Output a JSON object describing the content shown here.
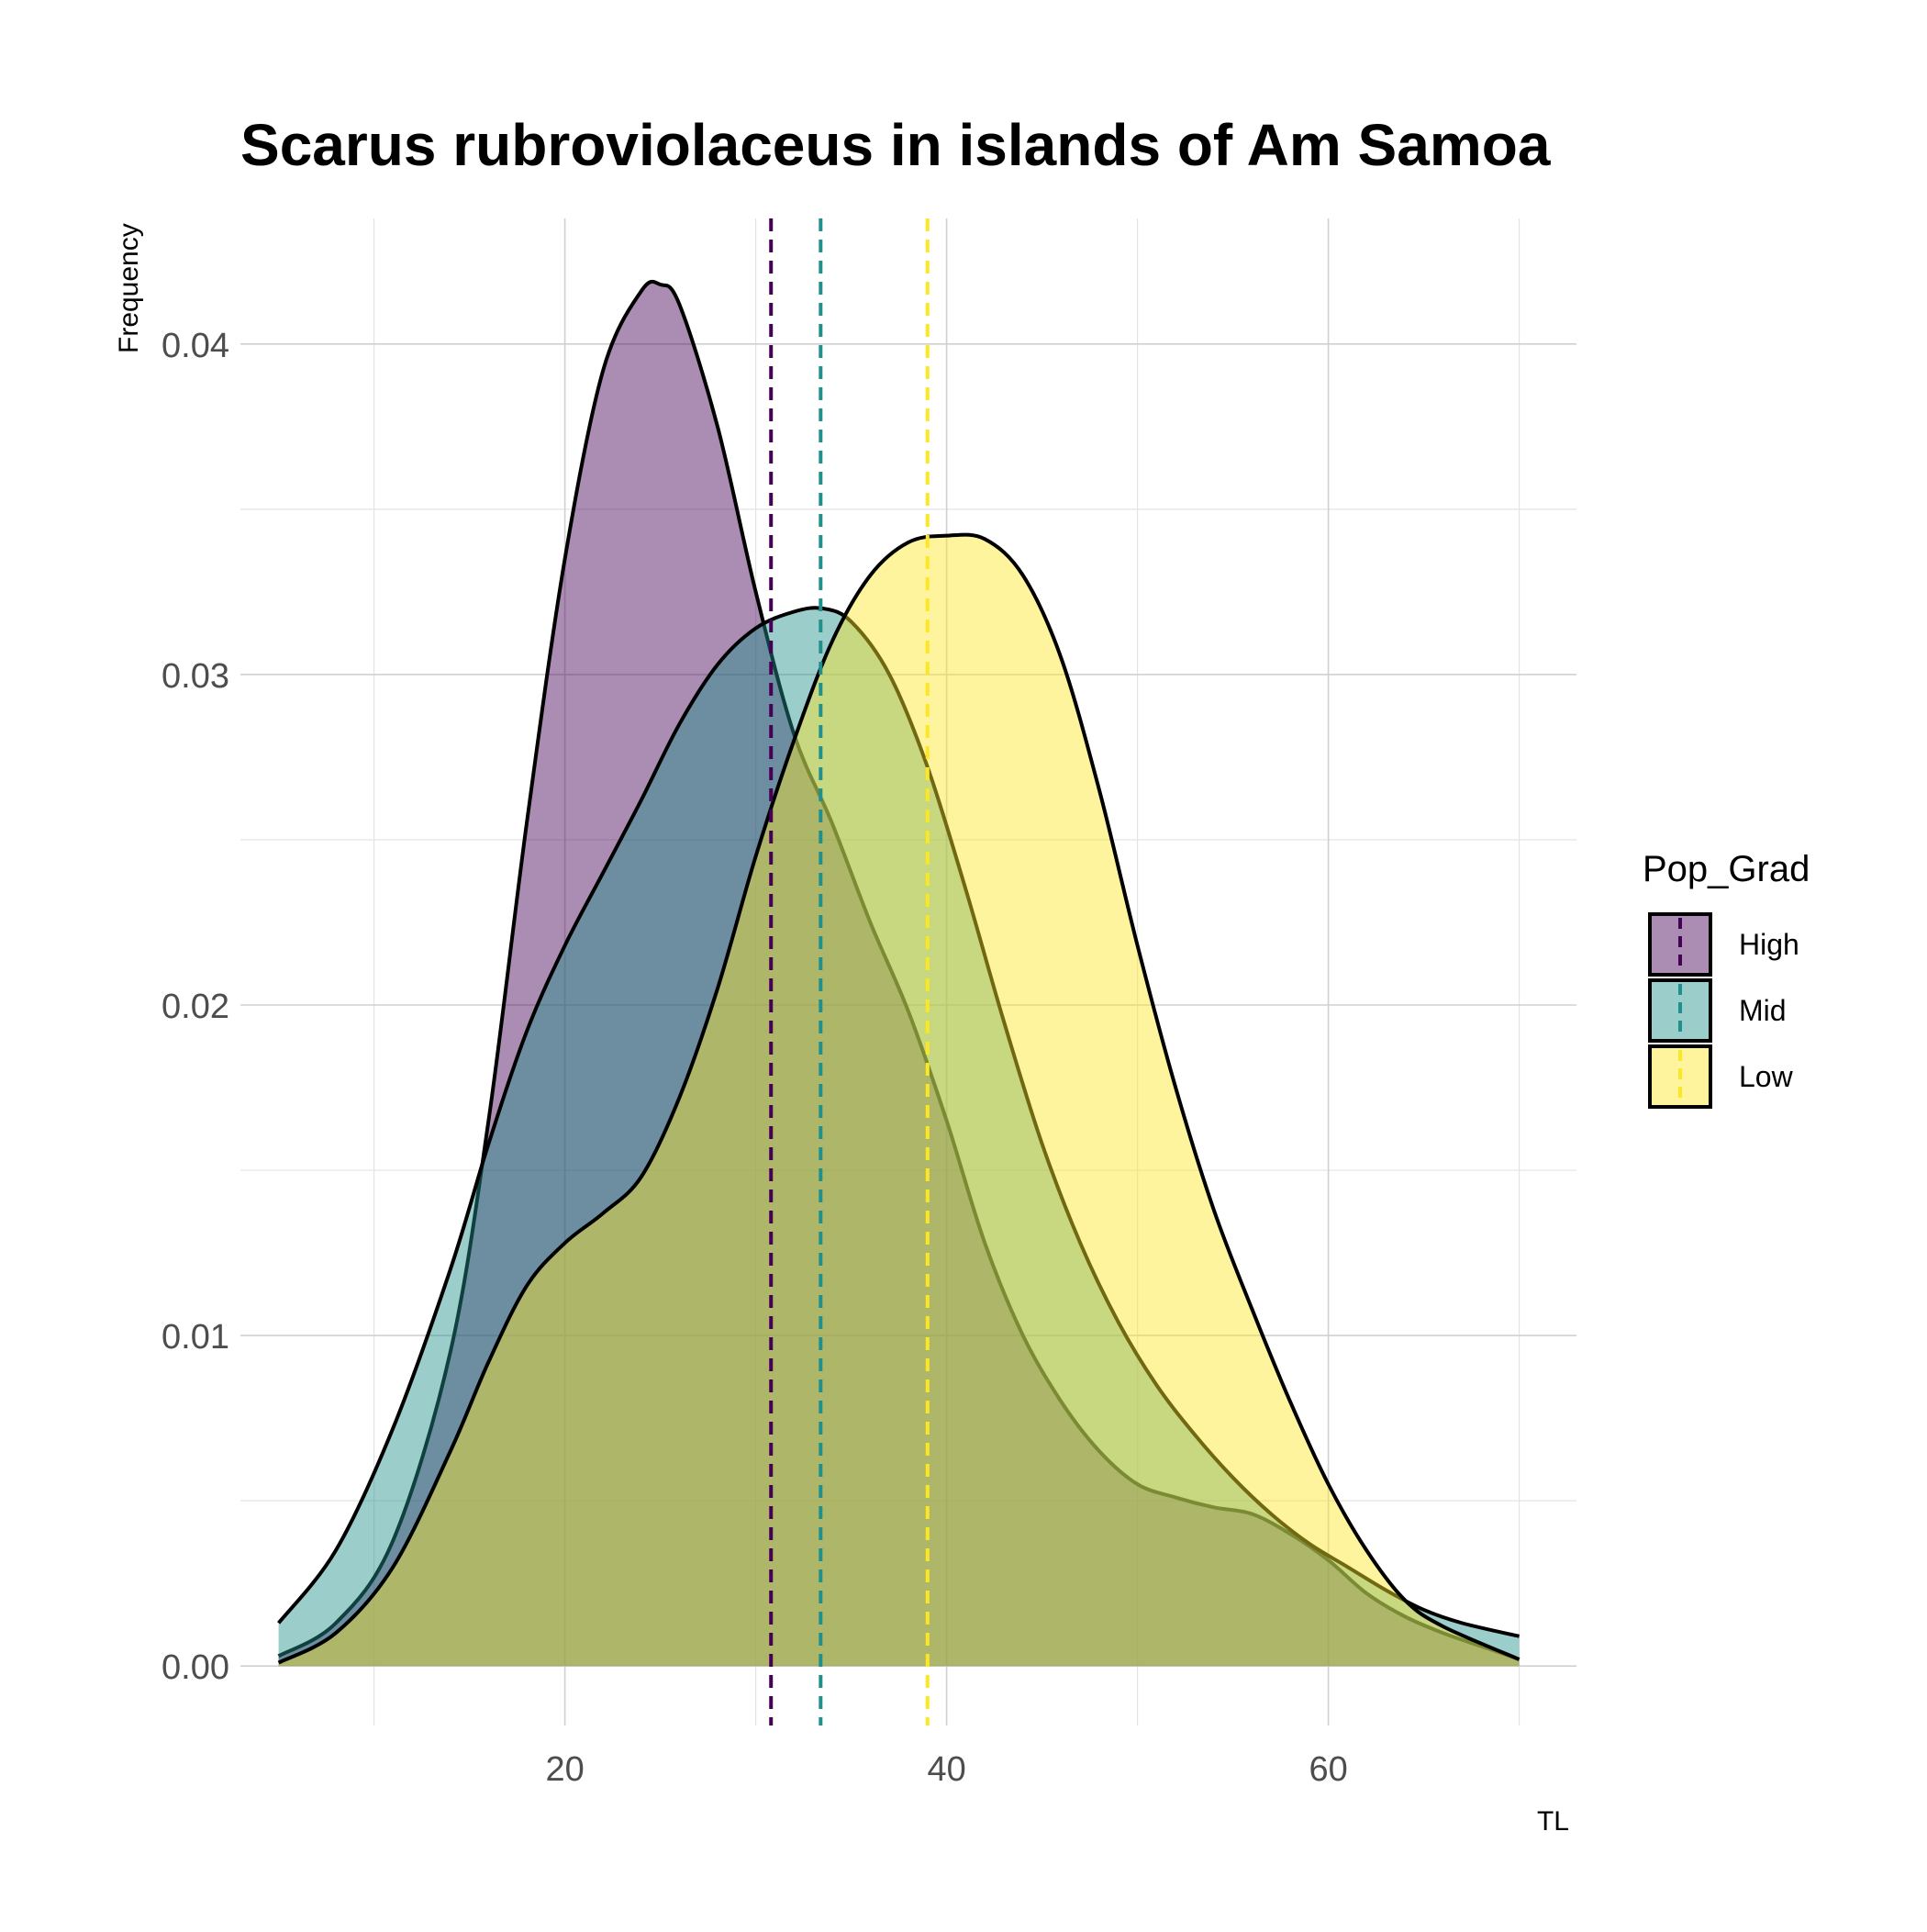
{
  "chart_data": {
    "type": "area",
    "title": "Scarus rubroviolaceus in islands of Am Samoa",
    "xlabel": "TL",
    "ylabel": "Frequency",
    "xlim": [
      3,
      73
    ],
    "ylim": [
      -0.0018,
      0.0438
    ],
    "x_ticks": [
      20,
      40,
      60
    ],
    "x_tick_labels": [
      "20",
      "40",
      "60"
    ],
    "x_minor": [
      10,
      30,
      50,
      70
    ],
    "y_ticks": [
      0,
      0.01,
      0.02,
      0.03,
      0.04
    ],
    "y_tick_labels": [
      "0.00",
      "0.01",
      "0.02",
      "0.03",
      "0.04"
    ],
    "y_minor": [
      0.005,
      0.015,
      0.025,
      0.035
    ],
    "grid": true,
    "legend": {
      "title": "Pop_Grad",
      "position": "right"
    },
    "series": [
      {
        "name": "High",
        "color": "#440154",
        "mean": 30.8,
        "points": [
          [
            5,
            0.0003
          ],
          [
            8,
            0.0013
          ],
          [
            11,
            0.0038
          ],
          [
            14,
            0.0095
          ],
          [
            16,
            0.0165
          ],
          [
            18,
            0.0255
          ],
          [
            20,
            0.0335
          ],
          [
            22,
            0.0392
          ],
          [
            24,
            0.0416
          ],
          [
            25,
            0.0418
          ],
          [
            26,
            0.0412
          ],
          [
            28,
            0.0375
          ],
          [
            30,
            0.0325
          ],
          [
            32,
            0.0282
          ],
          [
            34,
            0.0255
          ],
          [
            36,
            0.0225
          ],
          [
            38,
            0.0198
          ],
          [
            40,
            0.0165
          ],
          [
            42,
            0.0128
          ],
          [
            44,
            0.01
          ],
          [
            46,
            0.008
          ],
          [
            48,
            0.0065
          ],
          [
            50,
            0.0055
          ],
          [
            52,
            0.0051
          ],
          [
            54,
            0.0048
          ],
          [
            56,
            0.0046
          ],
          [
            58,
            0.004
          ],
          [
            60,
            0.0032
          ],
          [
            62,
            0.0022
          ],
          [
            64,
            0.0015
          ],
          [
            66,
            0.001
          ],
          [
            68,
            0.0006
          ],
          [
            70,
            0.0002
          ]
        ]
      },
      {
        "name": "Mid",
        "color": "#21908C",
        "mean": 33.4,
        "points": [
          [
            5,
            0.0013
          ],
          [
            8,
            0.0035
          ],
          [
            11,
            0.0072
          ],
          [
            14,
            0.012
          ],
          [
            16,
            0.0158
          ],
          [
            18,
            0.0192
          ],
          [
            20,
            0.0218
          ],
          [
            22,
            0.024
          ],
          [
            24,
            0.0262
          ],
          [
            26,
            0.0285
          ],
          [
            28,
            0.0303
          ],
          [
            30,
            0.0314
          ],
          [
            32,
            0.0319
          ],
          [
            33.5,
            0.032
          ],
          [
            35,
            0.0316
          ],
          [
            37,
            0.03
          ],
          [
            39,
            0.0272
          ],
          [
            41,
            0.0235
          ],
          [
            43,
            0.0195
          ],
          [
            45,
            0.0158
          ],
          [
            47,
            0.0128
          ],
          [
            49,
            0.0104
          ],
          [
            51,
            0.0085
          ],
          [
            53,
            0.007
          ],
          [
            55,
            0.0057
          ],
          [
            57,
            0.0046
          ],
          [
            59,
            0.0037
          ],
          [
            61,
            0.003
          ],
          [
            63,
            0.0023
          ],
          [
            65,
            0.0017
          ],
          [
            67,
            0.0013
          ],
          [
            70,
            0.0009
          ]
        ]
      },
      {
        "name": "Low",
        "color": "#FDE725",
        "mean": 39.0,
        "points": [
          [
            5,
            0.0001
          ],
          [
            8,
            0.001
          ],
          [
            11,
            0.003
          ],
          [
            14,
            0.0065
          ],
          [
            16,
            0.0092
          ],
          [
            18,
            0.0115
          ],
          [
            20,
            0.0128
          ],
          [
            22,
            0.0137
          ],
          [
            24,
            0.0148
          ],
          [
            26,
            0.0172
          ],
          [
            28,
            0.0205
          ],
          [
            30,
            0.0245
          ],
          [
            32,
            0.028
          ],
          [
            34,
            0.031
          ],
          [
            36,
            0.033
          ],
          [
            38,
            0.034
          ],
          [
            40,
            0.0342
          ],
          [
            42,
            0.0341
          ],
          [
            44,
            0.033
          ],
          [
            46,
            0.0305
          ],
          [
            48,
            0.0265
          ],
          [
            50,
            0.0218
          ],
          [
            52,
            0.0175
          ],
          [
            54,
            0.0138
          ],
          [
            56,
            0.0108
          ],
          [
            58,
            0.008
          ],
          [
            60,
            0.0055
          ],
          [
            62,
            0.0035
          ],
          [
            64,
            0.002
          ],
          [
            66,
            0.0012
          ],
          [
            70,
            0.0002
          ]
        ]
      }
    ]
  }
}
